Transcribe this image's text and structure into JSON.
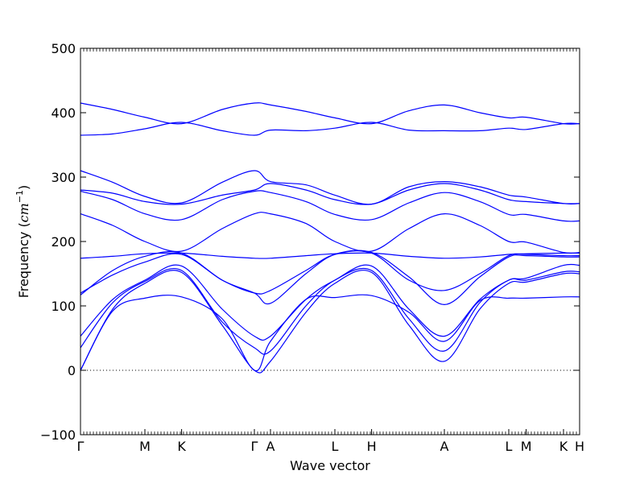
{
  "chart_data": {
    "type": "line",
    "title": "",
    "xlabel": "Wave vector",
    "ylabel_text": "Frequency (",
    "ylabel_unit": "cm",
    "ylabel_exp": "−1",
    "ylabel_close": ")",
    "ylim": [
      -100,
      500
    ],
    "xlim": [
      0,
      7.75
    ],
    "yticks": [
      -100,
      0,
      100,
      200,
      300,
      400,
      500
    ],
    "ytick_labels": [
      "−100",
      "0",
      "100",
      "200",
      "300",
      "400",
      "500"
    ],
    "xticks": [
      {
        "x": 0.0,
        "label": "Γ"
      },
      {
        "x": 1.0,
        "label": "M"
      },
      {
        "x": 1.57,
        "label": "K"
      },
      {
        "x": 2.7,
        "label": "Γ"
      },
      {
        "x": 2.95,
        "label": "A"
      },
      {
        "x": 3.95,
        "label": "L"
      },
      {
        "x": 4.52,
        "label": "H"
      },
      {
        "x": 5.65,
        "label": "A"
      },
      {
        "x": 6.65,
        "label": "L"
      },
      {
        "x": 6.92,
        "label": "M"
      },
      {
        "x": 7.5,
        "label": "K"
      },
      {
        "x": 7.75,
        "label": "H"
      }
    ],
    "zero_line": true,
    "line_color": "#0000ff",
    "series": [
      {
        "x": [
          0,
          0.5,
          1.0,
          1.57,
          2.2,
          2.7,
          2.95,
          3.5,
          3.95,
          4.52,
          5.1,
          5.65,
          6.2,
          6.65,
          6.92,
          7.5,
          7.75
        ],
        "values": [
          415,
          405,
          393,
          383,
          405,
          415,
          412,
          402,
          392,
          383,
          403,
          412,
          400,
          392,
          393,
          383,
          383
        ]
      },
      {
        "x": [
          0,
          0.5,
          1.0,
          1.57,
          2.2,
          2.7,
          2.95,
          3.5,
          3.95,
          4.52,
          5.1,
          5.65,
          6.2,
          6.65,
          6.92,
          7.5,
          7.75
        ],
        "values": [
          365,
          367,
          375,
          385,
          372,
          365,
          373,
          372,
          376,
          385,
          373,
          372,
          372,
          376,
          374,
          383,
          383
        ]
      },
      {
        "x": [
          0,
          0.5,
          1.0,
          1.57,
          2.2,
          2.7,
          2.95,
          3.5,
          3.95,
          4.52,
          5.1,
          5.65,
          6.2,
          6.65,
          6.92,
          7.5,
          7.75
        ],
        "values": [
          310,
          292,
          270,
          260,
          292,
          310,
          293,
          288,
          272,
          258,
          285,
          293,
          285,
          272,
          269,
          259,
          259
        ]
      },
      {
        "x": [
          0,
          0.5,
          1.0,
          1.57,
          2.2,
          2.7,
          2.95,
          3.5,
          3.95,
          4.52,
          5.1,
          5.65,
          6.2,
          6.65,
          6.92,
          7.5,
          7.75
        ],
        "values": [
          280,
          275,
          262,
          258,
          272,
          280,
          290,
          280,
          265,
          258,
          280,
          290,
          280,
          265,
          262,
          259,
          259
        ]
      },
      {
        "x": [
          0,
          0.5,
          1.0,
          1.57,
          2.2,
          2.7,
          2.95,
          3.5,
          3.95,
          4.52,
          5.1,
          5.65,
          6.2,
          6.65,
          6.92,
          7.5,
          7.75
        ],
        "values": [
          278,
          265,
          243,
          234,
          265,
          278,
          276,
          262,
          242,
          234,
          260,
          276,
          262,
          242,
          242,
          232,
          232
        ]
      },
      {
        "x": [
          0,
          0.5,
          1.0,
          1.57,
          2.2,
          2.7,
          2.95,
          3.5,
          3.95,
          4.52,
          5.1,
          5.65,
          6.2,
          6.65,
          6.92,
          7.5,
          7.75
        ],
        "values": [
          243,
          225,
          200,
          185,
          220,
          243,
          243,
          228,
          200,
          185,
          220,
          243,
          225,
          200,
          199,
          183,
          183
        ]
      },
      {
        "x": [
          0,
          0.5,
          1.0,
          1.57,
          2.2,
          2.7,
          2.95,
          3.5,
          3.95,
          4.52,
          5.1,
          5.65,
          6.2,
          6.65,
          6.92,
          7.5,
          7.75
        ],
        "values": [
          174,
          177,
          181,
          182,
          177,
          174,
          174,
          178,
          181,
          182,
          177,
          174,
          176,
          180,
          181,
          182,
          182
        ]
      },
      {
        "x": [
          0,
          0.5,
          1.0,
          1.57,
          2.2,
          2.7,
          2.95,
          3.5,
          3.95,
          4.52,
          5.1,
          5.65,
          6.2,
          6.65,
          6.92,
          7.5,
          7.75
        ],
        "values": [
          120,
          148,
          168,
          180,
          140,
          120,
          124,
          155,
          180,
          182,
          140,
          124,
          150,
          178,
          180,
          178,
          178
        ]
      },
      {
        "x": [
          0,
          0.5,
          1.0,
          1.57,
          2.2,
          2.7,
          2.95,
          3.5,
          3.95,
          4.52,
          5.1,
          5.65,
          6.2,
          6.65,
          6.92,
          7.5,
          7.75
        ],
        "values": [
          117,
          155,
          177,
          182,
          140,
          120,
          104,
          150,
          180,
          183,
          145,
          102,
          145,
          176,
          178,
          176,
          176
        ]
      },
      {
        "x": [
          0,
          0.5,
          1.0,
          1.57,
          2.2,
          2.7,
          2.95,
          3.5,
          3.95,
          4.52,
          5.1,
          5.65,
          6.2,
          6.65,
          6.92,
          7.5,
          7.75
        ],
        "values": [
          53,
          110,
          140,
          162,
          95,
          53,
          53,
          110,
          140,
          162,
          95,
          53,
          110,
          140,
          143,
          163,
          163
        ]
      },
      {
        "x": [
          0,
          0.5,
          1.0,
          1.57,
          2.2,
          2.7,
          2.95,
          3.5,
          3.95,
          4.52,
          5.1,
          5.65,
          6.2,
          6.65,
          6.92,
          7.5,
          7.75
        ],
        "values": [
          35,
          105,
          138,
          155,
          75,
          35,
          30,
          100,
          140,
          155,
          80,
          30,
          105,
          140,
          140,
          153,
          153
        ]
      },
      {
        "x": [
          0,
          0.5,
          1.0,
          1.57,
          2.2,
          2.7,
          2.95,
          3.5,
          3.95,
          4.52,
          5.1,
          5.65,
          6.2,
          6.65,
          6.92,
          7.5,
          7.75
        ],
        "values": [
          0,
          95,
          135,
          152,
          70,
          0,
          14,
          90,
          135,
          152,
          70,
          14,
          95,
          135,
          137,
          150,
          150
        ]
      },
      {
        "x": [
          0,
          0.5,
          1.0,
          1.57,
          2.2,
          2.7,
          2.95,
          3.5,
          3.95,
          4.52,
          5.1,
          5.65,
          6.2,
          6.65,
          6.92,
          7.5,
          7.75
        ],
        "values": [
          0,
          92,
          112,
          114,
          80,
          0,
          45,
          110,
          113,
          116,
          90,
          45,
          108,
          112,
          112,
          114,
          114
        ]
      }
    ]
  }
}
